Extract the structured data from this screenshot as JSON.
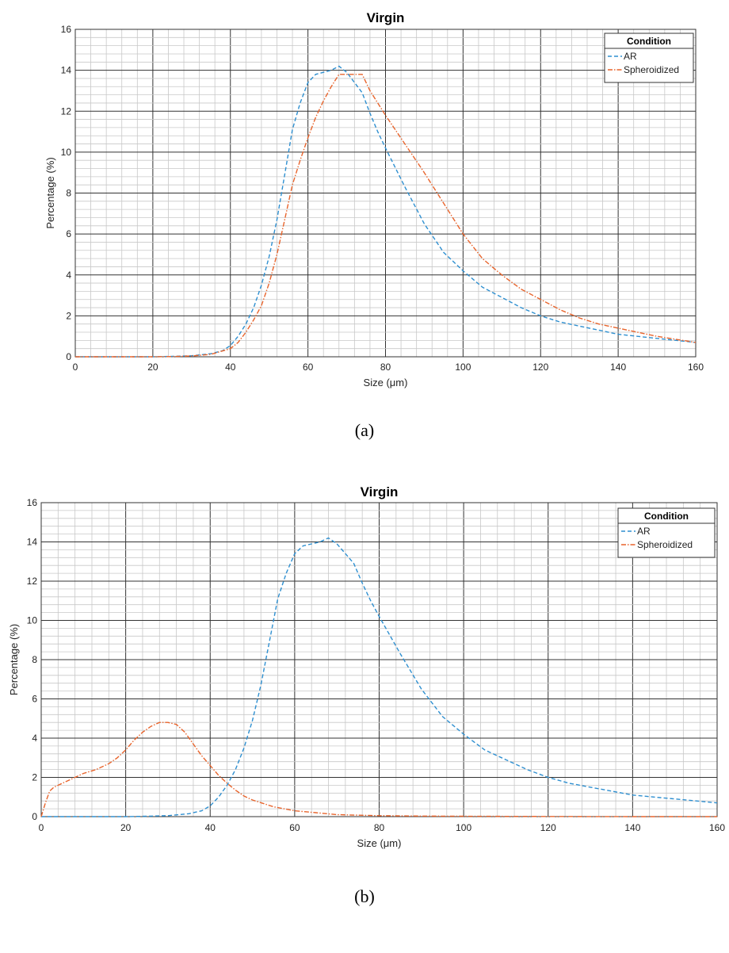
{
  "chart_data": [
    {
      "type": "line",
      "title": "Virgin",
      "caption": "(a)",
      "xlabel": "Size (μm)",
      "ylabel": "Percentage (%)",
      "xlim": [
        0,
        160
      ],
      "ylim": [
        0,
        16
      ],
      "xticks": [
        0,
        20,
        40,
        60,
        80,
        100,
        120,
        140,
        160
      ],
      "yticks": [
        0,
        2,
        4,
        6,
        8,
        10,
        12,
        14,
        16
      ],
      "grid": true,
      "legend": {
        "title": "Condition",
        "position": "top-right"
      },
      "series": [
        {
          "name": "AR",
          "color": "#2e8fd0",
          "style": "dashed",
          "x": [
            0,
            10,
            20,
            25,
            30,
            35,
            38,
            40,
            42,
            44,
            46,
            48,
            50,
            52,
            54,
            56,
            58,
            60,
            62,
            64,
            66,
            68,
            70,
            72,
            74,
            76,
            78,
            80,
            85,
            90,
            95,
            100,
            105,
            110,
            115,
            120,
            125,
            130,
            135,
            140,
            150,
            160
          ],
          "y": [
            0,
            0,
            0,
            0.02,
            0.05,
            0.15,
            0.3,
            0.55,
            1.0,
            1.6,
            2.4,
            3.5,
            4.9,
            6.7,
            8.9,
            11.1,
            12.4,
            13.4,
            13.8,
            13.9,
            14.0,
            14.2,
            13.9,
            13.4,
            12.9,
            11.9,
            11.0,
            10.2,
            8.3,
            6.5,
            5.1,
            4.2,
            3.4,
            2.9,
            2.4,
            2.0,
            1.7,
            1.5,
            1.3,
            1.1,
            0.9,
            0.7
          ]
        },
        {
          "name": "Spheroidized",
          "color": "#e8642c",
          "style": "dash-dot",
          "x": [
            0,
            10,
            20,
            25,
            30,
            35,
            40,
            42,
            44,
            46,
            48,
            50,
            52,
            54,
            56,
            58,
            60,
            62,
            64,
            66,
            68,
            70,
            72,
            74,
            76,
            78,
            80,
            85,
            90,
            95,
            100,
            105,
            110,
            115,
            120,
            125,
            130,
            135,
            140,
            150,
            160
          ],
          "y": [
            0,
            0,
            0,
            0.01,
            0.04,
            0.12,
            0.4,
            0.7,
            1.2,
            1.8,
            2.5,
            3.6,
            5.0,
            6.7,
            8.4,
            9.6,
            10.7,
            11.7,
            12.5,
            13.2,
            13.8,
            13.8,
            13.8,
            13.8,
            13.0,
            12.4,
            11.8,
            10.4,
            9.0,
            7.5,
            6.0,
            4.8,
            4.0,
            3.3,
            2.8,
            2.3,
            1.9,
            1.6,
            1.4,
            1.0,
            0.7
          ]
        }
      ]
    },
    {
      "type": "line",
      "title": "Virgin",
      "caption": "(b)",
      "xlabel": "Size (μm)",
      "ylabel": "Percentage (%)",
      "xlim": [
        0,
        160
      ],
      "ylim": [
        0,
        16
      ],
      "xticks": [
        0,
        20,
        40,
        60,
        80,
        100,
        120,
        140,
        160
      ],
      "yticks": [
        0,
        2,
        4,
        6,
        8,
        10,
        12,
        14,
        16
      ],
      "grid": true,
      "legend": {
        "title": "Condition",
        "position": "top-right"
      },
      "series": [
        {
          "name": "AR",
          "color": "#2e8fd0",
          "style": "dashed",
          "x": [
            0,
            10,
            20,
            25,
            30,
            35,
            38,
            40,
            42,
            44,
            46,
            48,
            50,
            52,
            54,
            56,
            58,
            60,
            62,
            64,
            66,
            68,
            70,
            72,
            74,
            76,
            78,
            80,
            85,
            90,
            95,
            100,
            105,
            110,
            115,
            120,
            125,
            130,
            135,
            140,
            150,
            160
          ],
          "y": [
            0,
            0,
            0,
            0.02,
            0.05,
            0.15,
            0.3,
            0.55,
            1.0,
            1.6,
            2.4,
            3.5,
            4.9,
            6.7,
            8.9,
            11.1,
            12.4,
            13.4,
            13.8,
            13.9,
            14.0,
            14.2,
            13.9,
            13.4,
            12.9,
            11.9,
            11.0,
            10.2,
            8.3,
            6.5,
            5.1,
            4.2,
            3.4,
            2.9,
            2.4,
            2.0,
            1.7,
            1.5,
            1.3,
            1.1,
            0.9,
            0.7
          ]
        },
        {
          "name": "Spheroidized",
          "color": "#e8642c",
          "style": "dash-dot",
          "x": [
            0,
            1,
            2,
            3,
            5,
            8,
            10,
            13,
            16,
            18,
            20,
            22,
            24,
            26,
            28,
            30,
            32,
            34,
            36,
            38,
            40,
            42,
            44,
            46,
            48,
            50,
            55,
            60,
            65,
            70,
            80,
            90,
            100,
            120,
            140,
            160
          ],
          "y": [
            0,
            0.7,
            1.3,
            1.5,
            1.7,
            2.0,
            2.2,
            2.4,
            2.7,
            3.0,
            3.4,
            3.9,
            4.3,
            4.6,
            4.8,
            4.8,
            4.7,
            4.3,
            3.7,
            3.1,
            2.6,
            2.1,
            1.7,
            1.35,
            1.05,
            0.85,
            0.5,
            0.3,
            0.2,
            0.1,
            0.05,
            0.03,
            0.02,
            0.01,
            0,
            0
          ]
        }
      ]
    }
  ]
}
